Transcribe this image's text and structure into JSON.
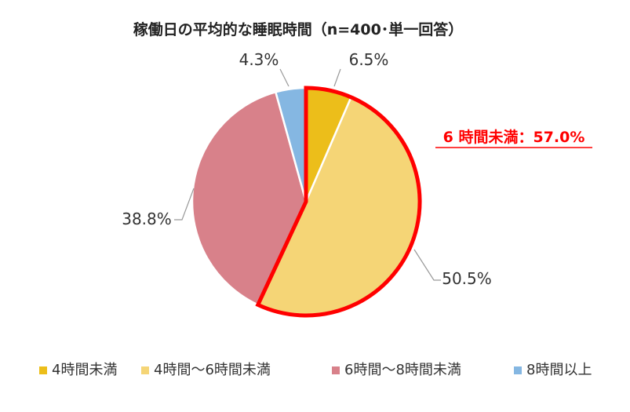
{
  "chart_data": {
    "type": "pie",
    "title": "稼働日の平均的な睡眠時間（n=400･単一回答）",
    "categories": [
      "4時間未満",
      "4時間～6時間未満",
      "6時間～8時間未満",
      "8時間以上"
    ],
    "values": [
      6.5,
      50.5,
      38.8,
      4.3
    ],
    "value_labels": [
      "6.5%",
      "50.5%",
      "38.8%",
      "4.3%"
    ],
    "colors": [
      "#ECBE1A",
      "#F5D576",
      "#D8818A",
      "#85B7E2"
    ],
    "legend_position": "bottom",
    "highlight": {
      "label": "6 時間未満：57.0%",
      "indices": [
        0,
        1
      ],
      "color": "#FF0000"
    }
  }
}
